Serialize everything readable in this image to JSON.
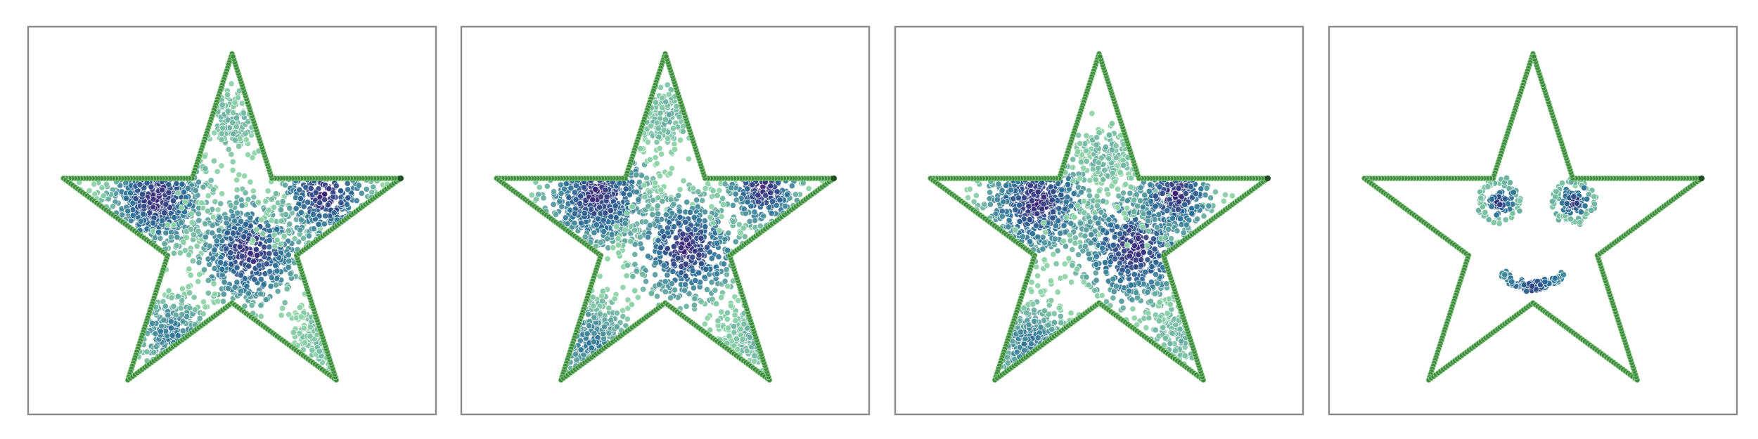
{
  "colors": {
    "boundary_dark": "#1f4d24",
    "boundary_mid": "#3f8a40",
    "boundary_light": "#8fd08a",
    "point_dark": "#3a1f73",
    "point_mid": "#2a6f97",
    "point_light": "#8cd3a6",
    "frame": "#8a8a8a"
  },
  "chart_data": [
    {
      "type": "scatter",
      "xlim": [
        -1.15,
        1.15
      ],
      "ylim": [
        -1.0,
        1.15
      ],
      "grid": false,
      "boundary": "star",
      "clusters": [
        {
          "cx": -0.42,
          "cy": 0.2,
          "spread": 0.16,
          "weight": 0.3,
          "density": "high"
        },
        {
          "cx": 0.1,
          "cy": -0.1,
          "spread": 0.17,
          "weight": 0.3,
          "density": "high"
        },
        {
          "cx": 0.52,
          "cy": 0.22,
          "spread": 0.15,
          "weight": 0.14,
          "density": "high"
        },
        {
          "cx": -0.35,
          "cy": -0.55,
          "spread": 0.12,
          "weight": 0.12,
          "density": "medium"
        },
        {
          "cx": 0.0,
          "cy": 0.62,
          "spread": 0.1,
          "weight": 0.07,
          "density": "low"
        },
        {
          "cx": 0.55,
          "cy": -0.55,
          "spread": 0.1,
          "weight": 0.07,
          "density": "low"
        }
      ]
    },
    {
      "type": "scatter",
      "xlim": [
        -1.15,
        1.15
      ],
      "ylim": [
        -1.0,
        1.15
      ],
      "grid": false,
      "boundary": "star",
      "clusters": [
        {
          "cx": -0.38,
          "cy": 0.22,
          "spread": 0.17,
          "weight": 0.3,
          "density": "high"
        },
        {
          "cx": 0.12,
          "cy": -0.08,
          "spread": 0.17,
          "weight": 0.28,
          "density": "high"
        },
        {
          "cx": 0.55,
          "cy": 0.25,
          "spread": 0.12,
          "weight": 0.1,
          "density": "high"
        },
        {
          "cx": -0.42,
          "cy": -0.6,
          "spread": 0.13,
          "weight": 0.14,
          "density": "medium"
        },
        {
          "cx": 0.0,
          "cy": 0.65,
          "spread": 0.1,
          "weight": 0.08,
          "density": "low"
        },
        {
          "cx": 0.5,
          "cy": -0.55,
          "spread": 0.1,
          "weight": 0.1,
          "density": "low"
        }
      ]
    },
    {
      "type": "scatter",
      "xlim": [
        -1.15,
        1.15
      ],
      "ylim": [
        -1.0,
        1.15
      ],
      "grid": false,
      "boundary": "star",
      "clusters": [
        {
          "cx": -0.35,
          "cy": 0.18,
          "spread": 0.17,
          "weight": 0.3,
          "density": "high"
        },
        {
          "cx": 0.2,
          "cy": -0.08,
          "spread": 0.18,
          "weight": 0.28,
          "density": "high"
        },
        {
          "cx": 0.42,
          "cy": 0.22,
          "spread": 0.13,
          "weight": 0.14,
          "density": "high"
        },
        {
          "cx": -0.38,
          "cy": -0.62,
          "spread": 0.13,
          "weight": 0.14,
          "density": "medium"
        },
        {
          "cx": 0.05,
          "cy": 0.42,
          "spread": 0.1,
          "weight": 0.08,
          "density": "low"
        },
        {
          "cx": 0.45,
          "cy": -0.55,
          "spread": 0.1,
          "weight": 0.06,
          "density": "low"
        }
      ]
    },
    {
      "type": "scatter",
      "xlim": [
        -1.15,
        1.15
      ],
      "ylim": [
        -1.0,
        1.15
      ],
      "grid": false,
      "boundary": "star",
      "features": [
        {
          "kind": "eye",
          "cx": -0.19,
          "cy": 0.18,
          "inner_radius": 0.05,
          "ring_radius": 0.11
        },
        {
          "kind": "eye",
          "cx": 0.23,
          "cy": 0.18,
          "inner_radius": 0.05,
          "ring_radius": 0.11
        },
        {
          "kind": "smile",
          "cx": 0.0,
          "cy": -0.22,
          "x_from": -0.18,
          "x_to": 0.18
        }
      ]
    }
  ]
}
